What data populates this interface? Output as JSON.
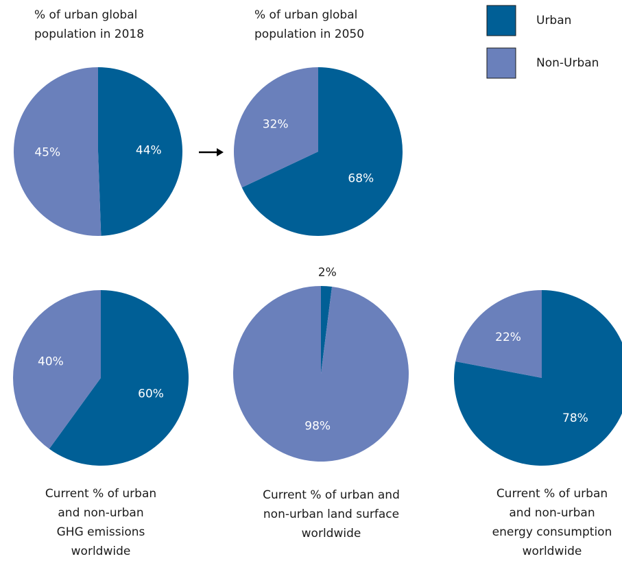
{
  "chart_data": [
    {
      "type": "pie",
      "title": [
        "% of urban global",
        "population in 2018"
      ],
      "categories": [
        "Urban",
        "Non-Urban"
      ],
      "values": [
        44,
        45
      ],
      "colors": [
        "#005f96",
        "#6a80bb"
      ],
      "value_labels": [
        "44%",
        "45%"
      ]
    },
    {
      "type": "pie",
      "title": [
        "% of urban global",
        "population in 2050"
      ],
      "categories": [
        "Urban",
        "Non-Urban"
      ],
      "values": [
        68,
        32
      ],
      "colors": [
        "#005f96",
        "#6a80bb"
      ],
      "value_labels": [
        "68%",
        "32%"
      ]
    },
    {
      "type": "pie",
      "title": [
        "Current % of urban",
        "and non-urban",
        "GHG emissions",
        "worldwide"
      ],
      "categories": [
        "Urban",
        "Non-Urban"
      ],
      "values": [
        60,
        40
      ],
      "colors": [
        "#005f96",
        "#6a80bb"
      ],
      "value_labels": [
        "60%",
        "40%"
      ]
    },
    {
      "type": "pie",
      "title": [
        "Current % of urban and",
        "non-urban land surface",
        "worldwide"
      ],
      "categories": [
        "Urban",
        "Non-Urban"
      ],
      "values": [
        2,
        98
      ],
      "colors": [
        "#005f96",
        "#6a80bb"
      ],
      "value_labels": [
        "2%",
        "98%"
      ]
    },
    {
      "type": "pie",
      "title": [
        "Current % of urban",
        "and non-urban",
        "energy consumption",
        "worldwide"
      ],
      "categories": [
        "Urban",
        "Non-Urban"
      ],
      "values": [
        78,
        22
      ],
      "colors": [
        "#005f96",
        "#6a80bb"
      ],
      "value_labels": [
        "78%",
        "22%"
      ]
    }
  ]
}
